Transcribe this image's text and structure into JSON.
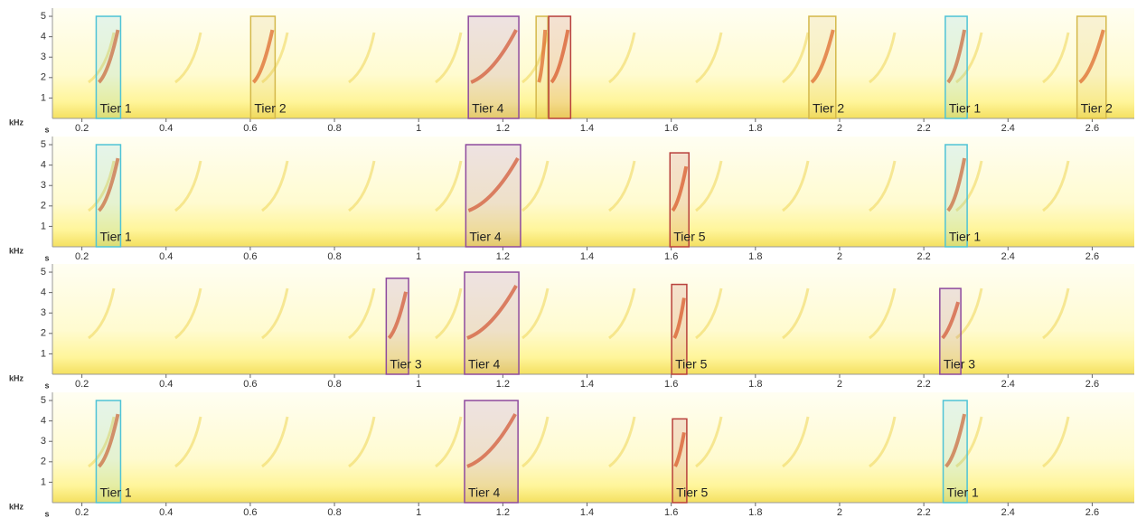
{
  "chart_data": [
    {
      "type": "spectrogram",
      "x_label": "s",
      "y_label": "kHz",
      "xlim": [
        0.13,
        2.7
      ],
      "xticks": [
        0.2,
        0.4,
        0.6,
        0.8,
        1,
        1.2,
        1.4,
        1.6,
        1.8,
        2,
        2.2,
        2.4,
        2.6
      ],
      "ylim": [
        0,
        5.4
      ],
      "yticks": [
        1,
        2,
        3,
        4,
        5
      ],
      "annotations": [
        {
          "label": "Tier 1",
          "color": "#4fc3d6",
          "x": [
            0.234,
            0.292
          ],
          "y": [
            0,
            5
          ]
        },
        {
          "label": "Tier 2",
          "color": "#d4b84a",
          "x": [
            0.601,
            0.659
          ],
          "y": [
            0,
            5
          ]
        },
        {
          "label": "Tier 4",
          "color": "#8e4a9e",
          "x": [
            1.118,
            1.238
          ],
          "y": [
            0,
            5
          ]
        },
        {
          "color": "#d4b84a",
          "x": [
            1.279,
            1.307
          ],
          "y": [
            0,
            5
          ]
        },
        {
          "color": "#b8403c",
          "x": [
            1.309,
            1.361
          ],
          "y": [
            0,
            5
          ]
        },
        {
          "label": "Tier 2",
          "color": "#d4b84a",
          "x": [
            1.927,
            1.991
          ],
          "y": [
            0,
            5
          ]
        },
        {
          "label": "Tier 1",
          "color": "#4fc3d6",
          "x": [
            2.251,
            2.303
          ],
          "y": [
            0,
            5
          ]
        },
        {
          "label": "Tier 2",
          "color": "#d4b84a",
          "x": [
            2.564,
            2.633
          ],
          "y": [
            0,
            5
          ]
        }
      ]
    },
    {
      "type": "spectrogram",
      "x_label": "s",
      "y_label": "kHz",
      "xlim": [
        0.13,
        2.7
      ],
      "xticks": [
        0.2,
        0.4,
        0.6,
        0.8,
        1,
        1.2,
        1.4,
        1.6,
        1.8,
        2,
        2.2,
        2.4,
        2.6
      ],
      "ylim": [
        0,
        5.4
      ],
      "yticks": [
        1,
        2,
        3,
        4,
        5
      ],
      "annotations": [
        {
          "label": "Tier 1",
          "color": "#4fc3d6",
          "x": [
            0.234,
            0.292
          ],
          "y": [
            0,
            5
          ]
        },
        {
          "label": "Tier 4",
          "color": "#8e4a9e",
          "x": [
            1.112,
            1.242
          ],
          "y": [
            0,
            5
          ]
        },
        {
          "label": "Tier 5",
          "color": "#b8403c",
          "x": [
            1.597,
            1.642
          ],
          "y": [
            0,
            4.6
          ]
        },
        {
          "label": "Tier 1",
          "color": "#4fc3d6",
          "x": [
            2.251,
            2.303
          ],
          "y": [
            0,
            5
          ]
        }
      ]
    },
    {
      "type": "spectrogram",
      "x_label": "s",
      "y_label": "kHz",
      "xlim": [
        0.13,
        2.7
      ],
      "xticks": [
        0.2,
        0.4,
        0.6,
        0.8,
        1,
        1.2,
        1.4,
        1.6,
        1.8,
        2,
        2.2,
        2.4,
        2.6
      ],
      "ylim": [
        0,
        5.4
      ],
      "yticks": [
        1,
        2,
        3,
        4,
        5
      ],
      "annotations": [
        {
          "label": "Tier 3",
          "color": "#8e4a9e",
          "x": [
            0.923,
            0.976
          ],
          "y": [
            0,
            4.7
          ]
        },
        {
          "label": "Tier 4",
          "color": "#8e4a9e",
          "x": [
            1.109,
            1.238
          ],
          "y": [
            0,
            5
          ]
        },
        {
          "label": "Tier 5",
          "color": "#b8403c",
          "x": [
            1.601,
            1.637
          ],
          "y": [
            0,
            4.4
          ]
        },
        {
          "label": "Tier 3",
          "color": "#8e4a9e",
          "x": [
            2.238,
            2.288
          ],
          "y": [
            0,
            4.2
          ]
        }
      ]
    },
    {
      "type": "spectrogram",
      "x_label": "s",
      "y_label": "kHz",
      "xlim": [
        0.13,
        2.7
      ],
      "xticks": [
        0.2,
        0.4,
        0.6,
        0.8,
        1,
        1.2,
        1.4,
        1.6,
        1.8,
        2,
        2.2,
        2.4,
        2.6
      ],
      "ylim": [
        0,
        5.4
      ],
      "yticks": [
        1,
        2,
        3,
        4,
        5
      ],
      "annotations": [
        {
          "label": "Tier 1",
          "color": "#4fc3d6",
          "x": [
            0.234,
            0.292
          ],
          "y": [
            0,
            5
          ]
        },
        {
          "label": "Tier 4",
          "color": "#8e4a9e",
          "x": [
            1.109,
            1.236
          ],
          "y": [
            0,
            5
          ]
        },
        {
          "label": "Tier 5",
          "color": "#b8403c",
          "x": [
            1.603,
            1.637
          ],
          "y": [
            0,
            4.1
          ]
        },
        {
          "label": "Tier 1",
          "color": "#4fc3d6",
          "x": [
            2.246,
            2.303
          ],
          "y": [
            0,
            5
          ]
        }
      ]
    }
  ]
}
